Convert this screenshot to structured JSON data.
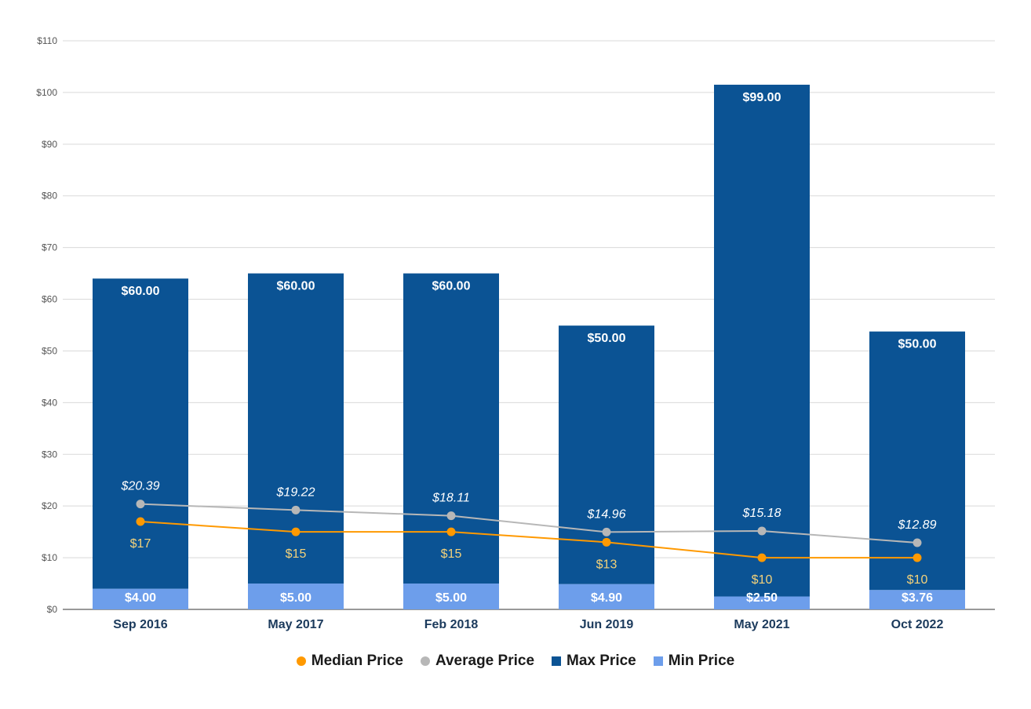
{
  "chart_data": {
    "type": "bar",
    "stacked": true,
    "categories": [
      "Sep 2016",
      "May 2017",
      "Feb 2018",
      "Jun 2019",
      "May 2021",
      "Oct 2022"
    ],
    "series": [
      {
        "name": "Min Price",
        "kind": "bar",
        "color": "#6d9eeb",
        "values": [
          4.0,
          5.0,
          5.0,
          4.9,
          2.5,
          3.76
        ],
        "labels": [
          "$4.00",
          "$5.00",
          "$5.00",
          "$4.90",
          "$2.50",
          "$3.76"
        ]
      },
      {
        "name": "Max Price",
        "kind": "bar",
        "color": "#0b5394",
        "values": [
          60.0,
          60.0,
          60.0,
          50.0,
          99.0,
          50.0
        ],
        "labels": [
          "$60.00",
          "$60.00",
          "$60.00",
          "$50.00",
          "$99.00",
          "$50.00"
        ]
      },
      {
        "name": "Average Price",
        "kind": "line",
        "color": "#b7b7b7",
        "values": [
          20.39,
          19.22,
          18.11,
          14.96,
          15.18,
          12.89
        ],
        "labels": [
          "$20.39",
          "$19.22",
          "$18.11",
          "$14.96",
          "$15.18",
          "$12.89"
        ]
      },
      {
        "name": "Median Price",
        "kind": "line",
        "color": "#ff9900",
        "values": [
          17,
          15,
          15,
          13,
          10,
          10
        ],
        "labels": [
          "$17",
          "$15",
          "$15",
          "$13",
          "$10",
          "$10"
        ]
      }
    ],
    "title": "",
    "xlabel": "",
    "ylabel": "",
    "ylim": [
      0,
      110
    ],
    "yticks": [
      0,
      10,
      20,
      30,
      40,
      50,
      60,
      70,
      80,
      90,
      100,
      110
    ],
    "ytick_labels": [
      "$0",
      "$10",
      "$20",
      "$30",
      "$40",
      "$50",
      "$60",
      "$70",
      "$80",
      "$90",
      "$100",
      "$110"
    ],
    "grid": true,
    "legend_position": "bottom",
    "legend": [
      {
        "name": "Median Price",
        "color": "#ff9900",
        "marker": "circle"
      },
      {
        "name": "Average Price",
        "color": "#b7b7b7",
        "marker": "circle"
      },
      {
        "name": "Max Price",
        "color": "#0b5394",
        "marker": "square"
      },
      {
        "name": "Min Price",
        "color": "#6d9eeb",
        "marker": "square"
      }
    ]
  }
}
